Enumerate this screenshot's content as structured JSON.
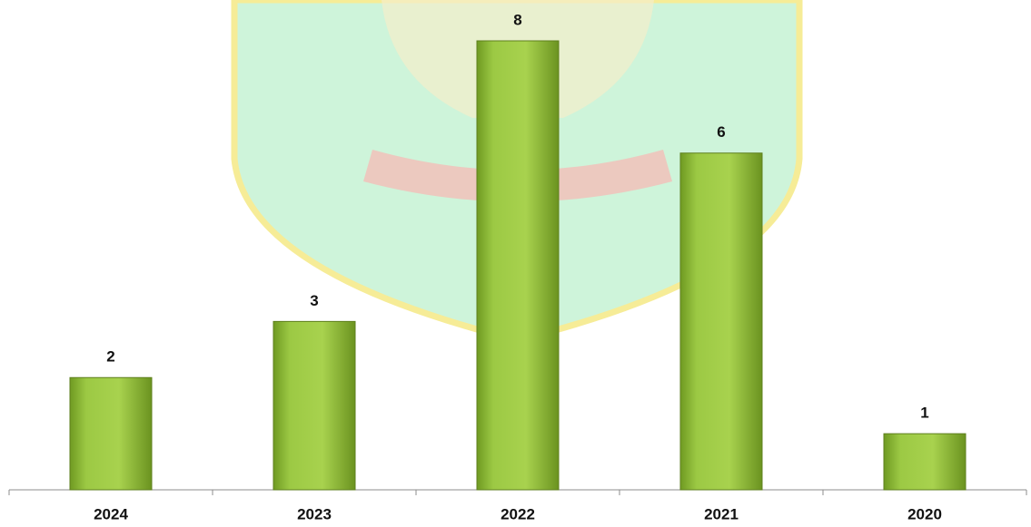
{
  "chart_data": {
    "type": "bar",
    "categories": [
      "2024",
      "2023",
      "2022",
      "2021",
      "2020"
    ],
    "values": [
      2,
      3,
      8,
      6,
      1
    ],
    "color": "#92c13a"
  }
}
